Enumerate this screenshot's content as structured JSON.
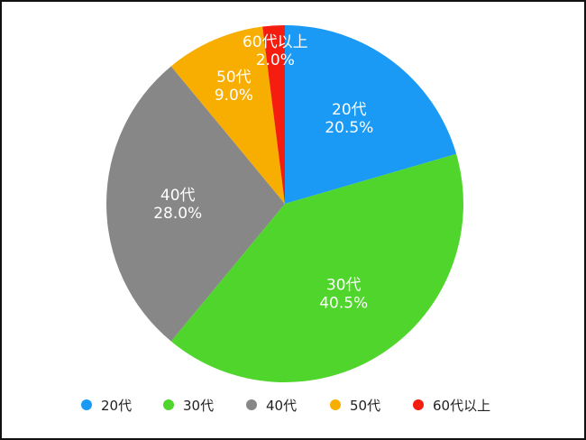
{
  "chart_data": {
    "type": "pie",
    "categories": [
      "20代",
      "30代",
      "40代",
      "50代",
      "60代以上"
    ],
    "values": [
      20.5,
      40.5,
      28.0,
      9.0,
      2.0
    ],
    "value_labels": [
      "20.5%",
      "40.5%",
      "28.0%",
      "9.0%",
      "2.0%"
    ],
    "colors": [
      "#1a9af4",
      "#4fd52b",
      "#878787",
      "#f7ae00",
      "#f51d0f"
    ],
    "start_angle": "12 o'clock",
    "direction": "clockwise",
    "legend_position": "bottom"
  }
}
